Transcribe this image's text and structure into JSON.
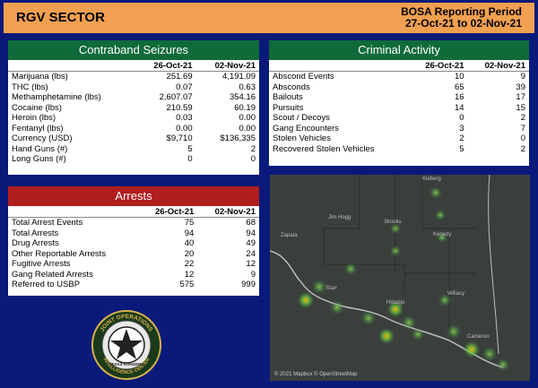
{
  "header": {
    "title": "RGV SECTOR",
    "period_line1": "BOSA Reporting Period",
    "period_line2": "27-Oct-21 to 02-Nov-21"
  },
  "contraband": {
    "title": "Contraband Seizures",
    "col1": "26-Oct-21",
    "col2": "02-Nov-21",
    "rows": [
      {
        "label": "Marijuana (lbs)",
        "a": "251.69",
        "b": "4,191.09"
      },
      {
        "label": "THC (lbs)",
        "a": "0.07",
        "b": "0.63"
      },
      {
        "label": "Methamphetamine (lbs)",
        "a": "2,607.07",
        "b": "354.16"
      },
      {
        "label": "Cocaine (lbs)",
        "a": "210.59",
        "b": "60.19"
      },
      {
        "label": "Heroin (lbs)",
        "a": "0.03",
        "b": "0.00"
      },
      {
        "label": "Fentanyl (lbs)",
        "a": "0.00",
        "b": "0.00"
      },
      {
        "label": "Currency (USD)",
        "a": "$9,710",
        "b": "$136,335"
      },
      {
        "label": "Hand Guns (#)",
        "a": "5",
        "b": "2"
      },
      {
        "label": "Long Guns (#)",
        "a": "0",
        "b": "0"
      }
    ]
  },
  "criminal": {
    "title": "Criminal Activity",
    "col1": "26-Oct-21",
    "col2": "02-Nov-21",
    "rows": [
      {
        "label": "Abscond Events",
        "a": "10",
        "b": "9"
      },
      {
        "label": "Absconds",
        "a": "65",
        "b": "39"
      },
      {
        "label": "Bailouts",
        "a": "16",
        "b": "17"
      },
      {
        "label": "Pursuits",
        "a": "14",
        "b": "15"
      },
      {
        "label": "Scout / Decoys",
        "a": "0",
        "b": "2"
      },
      {
        "label": "Gang Encounters",
        "a": "3",
        "b": "7"
      },
      {
        "label": "Stolen Vehicles",
        "a": "2",
        "b": "0"
      },
      {
        "label": "Recovered Stolen Vehicles",
        "a": "5",
        "b": "2"
      }
    ]
  },
  "arrests": {
    "title": "Arrests",
    "col1": "26-Oct-21",
    "col2": "02-Nov-21",
    "rows": [
      {
        "label": "Total Arrest Events",
        "a": "75",
        "b": "68"
      },
      {
        "label": "Total Arrests",
        "a": "94",
        "b": "94"
      },
      {
        "label": "Drug Arrests",
        "a": "40",
        "b": "49"
      },
      {
        "label": "Other Reportable Arrests",
        "a": "20",
        "b": "24"
      },
      {
        "label": "Fugitive Arrests",
        "a": "22",
        "b": "12"
      },
      {
        "label": "Gang Related Arrests",
        "a": "12",
        "b": "9"
      },
      {
        "label": "Referred to USBP",
        "a": "575",
        "b": "999"
      }
    ]
  },
  "map": {
    "labels": [
      "Kleberg",
      "Brooks",
      "Kenedy",
      "Jim Hogg",
      "Zapata",
      "Starr",
      "Hidalgo",
      "Willacy",
      "Cameron"
    ],
    "copyright": "© 2021 Mapbox © OpenStreetMap"
  },
  "logo": {
    "text_top": "JOINT OPERATIONS",
    "text_mid": "TEXAS RANGERS",
    "text_bottom": "INTELLIGENCE CENTER"
  }
}
